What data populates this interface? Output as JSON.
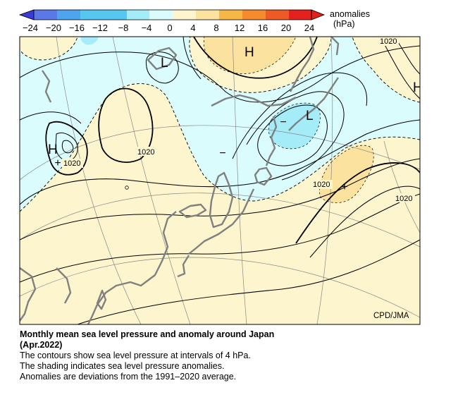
{
  "legend": {
    "tick_labels": [
      "−24",
      "−20",
      "−16",
      "−12",
      "−8",
      "−4",
      "0",
      "4",
      "8",
      "12",
      "16",
      "20",
      "24"
    ],
    "title_line1": "anomalies",
    "title_line2": "(hPa)",
    "colors": [
      "#3b3bd6",
      "#5a78e6",
      "#4fa4ee",
      "#56c7f0",
      "#a4ecf8",
      "#dafcfc",
      "#fcf5cd",
      "#fce29f",
      "#f7b744",
      "#f58a2e",
      "#ee5a26",
      "#e5211d"
    ]
  },
  "map": {
    "pressure_centers": [
      {
        "id": "high-north",
        "letter": "H"
      },
      {
        "id": "low-siberia",
        "letter": "L"
      },
      {
        "id": "high-west",
        "letter": "H"
      },
      {
        "id": "low-kamchatka",
        "letter": "L"
      },
      {
        "id": "high-east-edge",
        "letter": "H"
      }
    ],
    "isobar_labels": [
      {
        "id": "iso-1020-topright",
        "text": "1020"
      },
      {
        "id": "iso-1020-center",
        "text": "1020"
      },
      {
        "id": "iso-1020-west",
        "text": "1020"
      },
      {
        "id": "iso-1020-pacific",
        "text": "1020"
      },
      {
        "id": "iso-1020-east",
        "text": "1020"
      }
    ],
    "anomaly_signs": [
      {
        "id": "plus-west",
        "symbol": "+"
      },
      {
        "id": "plus-pacific",
        "symbol": "+"
      },
      {
        "id": "minus-kamchatka",
        "symbol": "−"
      },
      {
        "id": "minus-korea",
        "symbol": "−"
      }
    ],
    "credit": "CPD/JMA",
    "colors": {
      "positive_light": "#fcf5cd",
      "positive_medium": "#fce29f",
      "negative_light": "#dafcfc",
      "negative_medium": "#a4ecf8",
      "coast": "#808080",
      "isobar": "#000000"
    }
  },
  "caption": {
    "title_line1": "Monthly mean sea level pressure and anomaly around Japan",
    "title_line2": "(Apr.2022)",
    "line1": "The contours show sea level pressure at intervals of 4 hPa.",
    "line2": "The shading indicates sea level pressure anomalies.",
    "line3": "Anomalies are deviations from the 1991–2020 average."
  }
}
